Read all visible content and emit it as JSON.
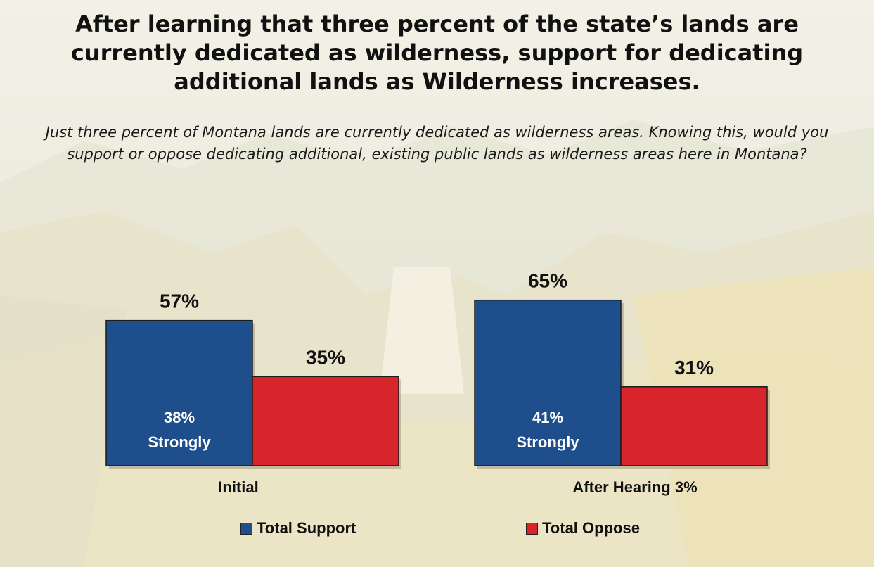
{
  "title": "After learning that three percent of the state’s lands are currently dedicated as wilderness, support for dedicating additional lands as Wilderness increases.",
  "subtitle": "Just three percent of Montana lands are currently dedicated as wilderness areas. Knowing this, would you support or oppose dedicating additional, existing public lands as wilderness areas here in Montana?",
  "colors": {
    "support": "#1f4e8c",
    "oppose": "#d8252b"
  },
  "chart_data": {
    "type": "bar",
    "categories": [
      "Initial",
      "After Hearing 3%"
    ],
    "series": [
      {
        "name": "Total Support",
        "values": [
          57,
          65
        ],
        "labels": [
          "57%",
          "65%"
        ],
        "inner_labels": [
          [
            "38%",
            "Strongly"
          ],
          [
            "41%",
            "Strongly"
          ]
        ]
      },
      {
        "name": "Total Oppose",
        "values": [
          35,
          31
        ],
        "labels": [
          "35%",
          "31%"
        ]
      }
    ],
    "ylim": [
      0,
      100
    ],
    "legend": "bottom"
  }
}
